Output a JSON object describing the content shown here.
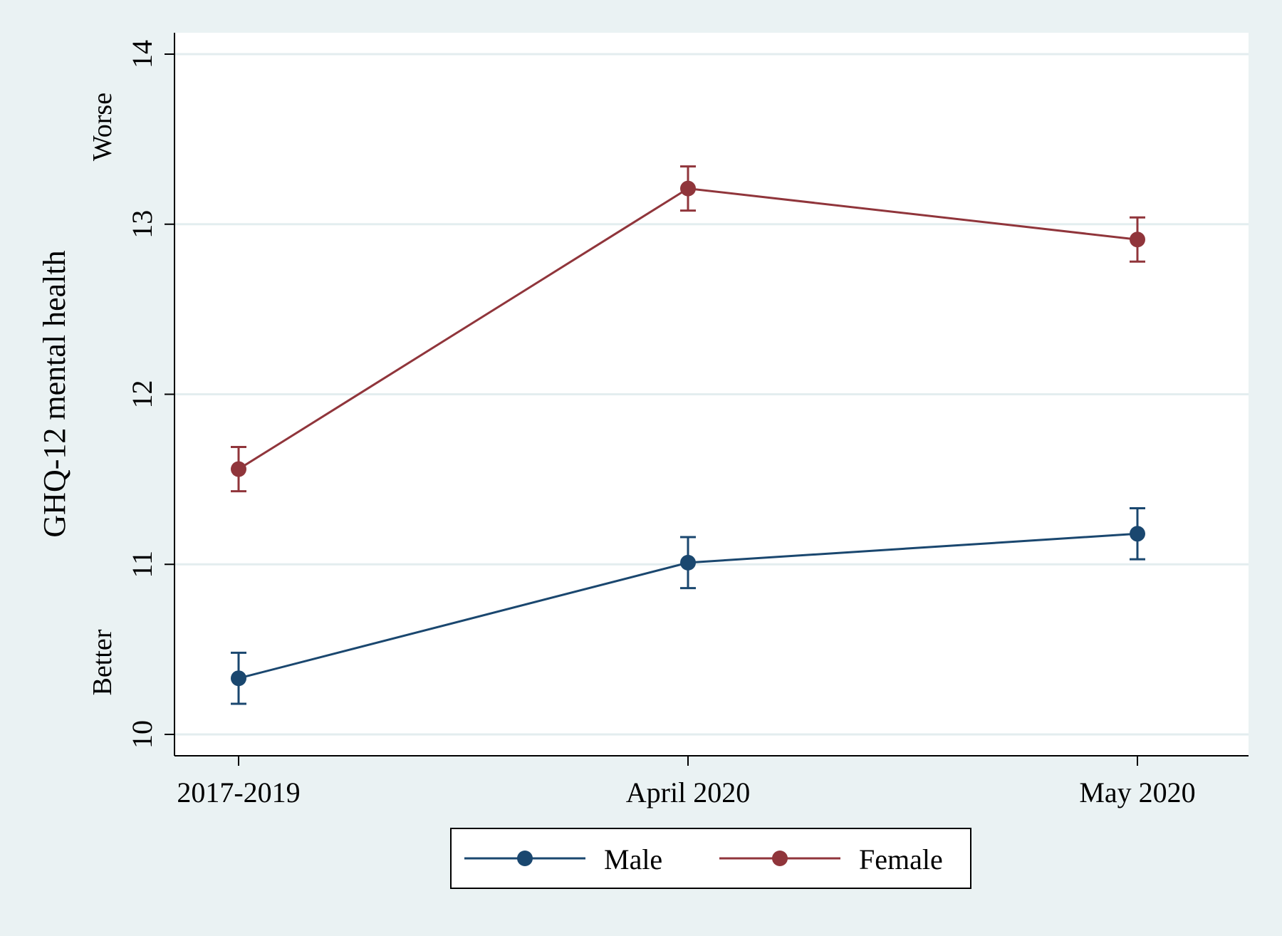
{
  "chart_data": {
    "type": "line",
    "categories": [
      "2017-2019",
      "April 2020",
      "May 2020"
    ],
    "ylabel": "GHQ-12 mental health",
    "ylim": [
      10,
      14
    ],
    "yticks": [
      "10",
      "11",
      "12",
      "13",
      "14"
    ],
    "annotations": {
      "top": "Worse",
      "bottom": "Better"
    },
    "grid": true,
    "legend_position": "bottom",
    "series": [
      {
        "name": "Male",
        "color": "#1a476f",
        "values": [
          10.33,
          11.01,
          11.18
        ],
        "ci_low": [
          10.18,
          10.86,
          11.03
        ],
        "ci_high": [
          10.48,
          11.16,
          11.33
        ]
      },
      {
        "name": "Female",
        "color": "#90353b",
        "values": [
          11.56,
          13.21,
          12.91
        ],
        "ci_low": [
          11.43,
          13.08,
          12.78
        ],
        "ci_high": [
          11.69,
          13.34,
          13.04
        ]
      }
    ]
  }
}
